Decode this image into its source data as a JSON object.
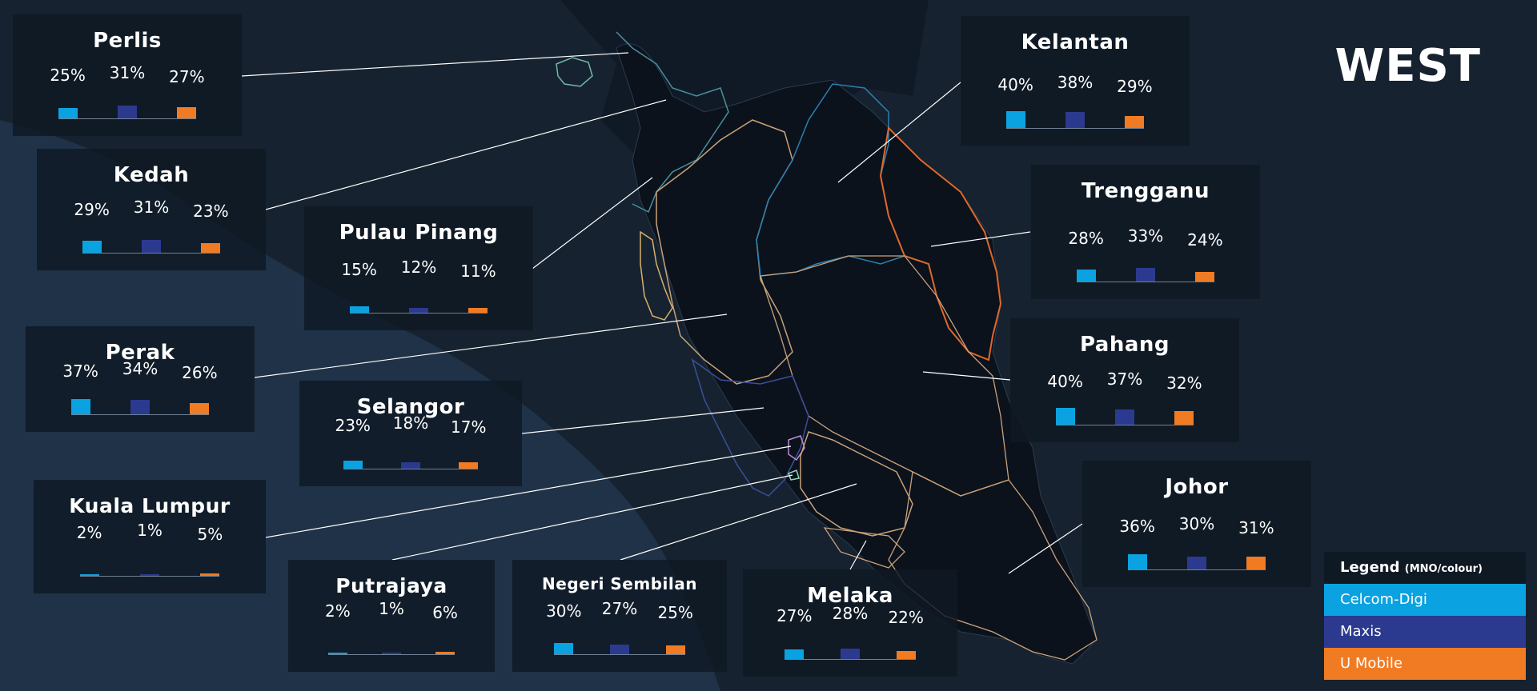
{
  "title": "WEST",
  "legend": {
    "title": "Legend",
    "subtitle": "(MNO/colour)",
    "items": [
      {
        "label": "Celcom-Digi",
        "color": "#0aa2e0"
      },
      {
        "label": "Maxis",
        "color": "#2b3a8f"
      },
      {
        "label": "U Mobile",
        "color": "#f07b23"
      }
    ]
  },
  "chart_data": {
    "type": "bar",
    "categories": [
      "Celcom-Digi",
      "Maxis",
      "U Mobile"
    ],
    "states": [
      {
        "name": "Perlis",
        "values": [
          25,
          31,
          27
        ],
        "labels": [
          "25%",
          "31%",
          "27%"
        ]
      },
      {
        "name": "Kedah",
        "values": [
          29,
          31,
          23
        ],
        "labels": [
          "29%",
          "31%",
          "23%"
        ]
      },
      {
        "name": "Pulau Pinang",
        "values": [
          15,
          12,
          11
        ],
        "labels": [
          "15%",
          "12%",
          "11%"
        ]
      },
      {
        "name": "Perak",
        "values": [
          37,
          34,
          26
        ],
        "labels": [
          "37%",
          "34%",
          "26%"
        ]
      },
      {
        "name": "Selangor",
        "values": [
          23,
          18,
          17
        ],
        "labels": [
          "23%",
          "18%",
          "17%"
        ]
      },
      {
        "name": "Kuala Lumpur",
        "values": [
          2,
          1,
          5
        ],
        "labels": [
          "2%",
          "1%",
          "5%"
        ]
      },
      {
        "name": "Putrajaya",
        "values": [
          2,
          1,
          6
        ],
        "labels": [
          "2%",
          "1%",
          "6%"
        ]
      },
      {
        "name": "Negeri Sembilan",
        "values": [
          30,
          27,
          25
        ],
        "labels": [
          "30%",
          "27%",
          "25%"
        ]
      },
      {
        "name": "Melaka",
        "values": [
          27,
          28,
          22
        ],
        "labels": [
          "27%",
          "28%",
          "22%"
        ]
      },
      {
        "name": "Kelantan",
        "values": [
          40,
          38,
          29
        ],
        "labels": [
          "40%",
          "38%",
          "29%"
        ]
      },
      {
        "name": "Trengganu",
        "values": [
          28,
          33,
          24
        ],
        "labels": [
          "28%",
          "33%",
          "24%"
        ]
      },
      {
        "name": "Pahang",
        "values": [
          40,
          37,
          32
        ],
        "labels": [
          "40%",
          "37%",
          "32%"
        ]
      },
      {
        "name": "Johor",
        "values": [
          36,
          30,
          31
        ],
        "labels": [
          "36%",
          "30%",
          "31%"
        ]
      }
    ]
  }
}
